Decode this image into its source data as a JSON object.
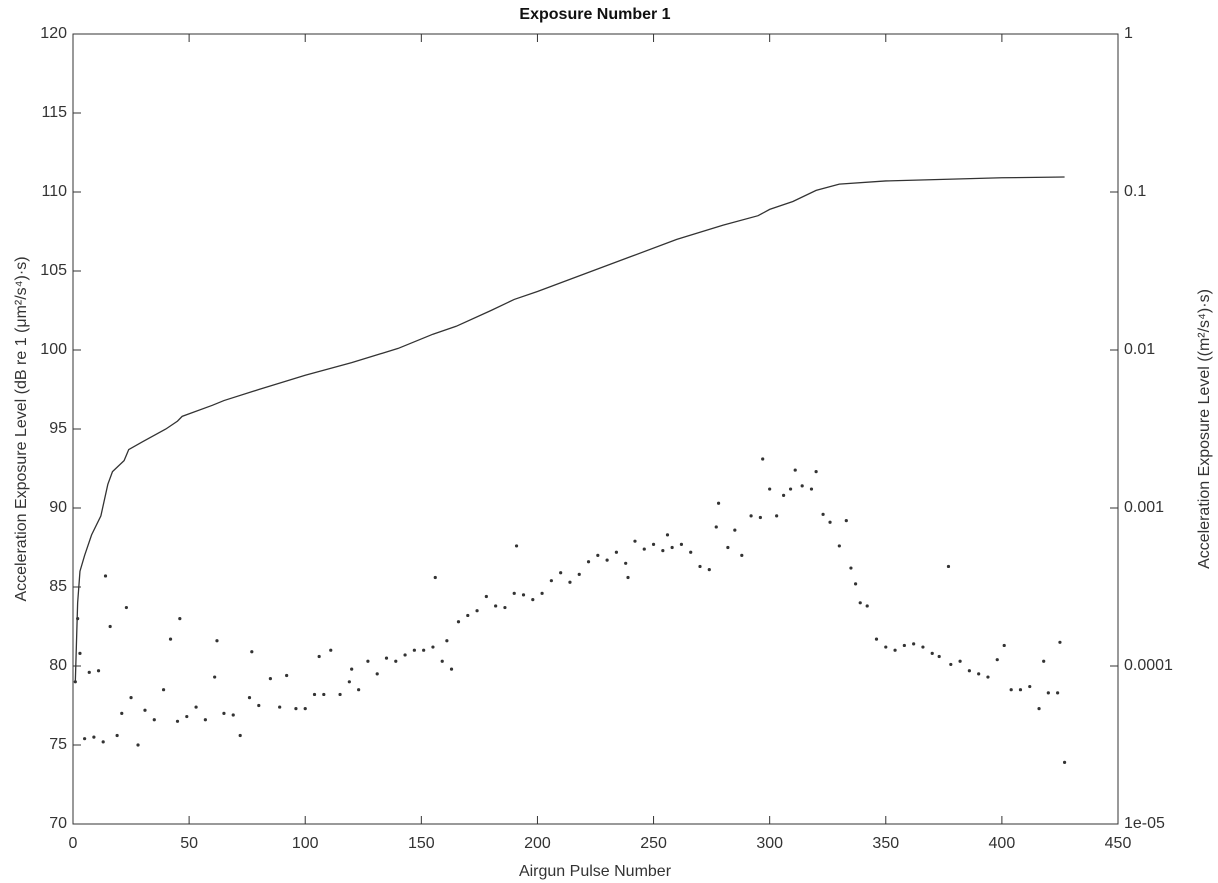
{
  "chart_data": {
    "type": "line",
    "title": "Exposure Number 1",
    "x_label": "Airgun Pulse Number",
    "y_label": "Acceleration Exposure Level (dB re 1 (μm²/s⁴)·s)",
    "y2_label": "Acceleration Exposure Level ((m²/s⁴)·s)",
    "xlim": [
      0,
      450
    ],
    "xticks": [
      0,
      50,
      100,
      150,
      200,
      250,
      300,
      350,
      400,
      450
    ],
    "ylim": [
      70,
      120
    ],
    "yticks": [
      70,
      75,
      80,
      85,
      90,
      95,
      100,
      105,
      110,
      115,
      120
    ],
    "y2lim": [
      1e-05,
      1
    ],
    "y2scale": "log",
    "y2ticks": [
      {
        "value": 1e-05,
        "label": "1e-05"
      },
      0.0001,
      0.001,
      0.01,
      0.1,
      1
    ],
    "grid": false,
    "series": [
      {
        "type": "scatter",
        "color": "#333333",
        "x": [
          1,
          2,
          3,
          5,
          7,
          9,
          11,
          13,
          14,
          16,
          19,
          21,
          23,
          25,
          28,
          31,
          35,
          39,
          42,
          45,
          46,
          49,
          53,
          57,
          61,
          62,
          65,
          69,
          72,
          76,
          77,
          80,
          85,
          89,
          92,
          96,
          100,
          104,
          106,
          108,
          111,
          115,
          119,
          120,
          123,
          127,
          131,
          135,
          139,
          143,
          147,
          151,
          155,
          156,
          159,
          161,
          163,
          166,
          170,
          174,
          178,
          182,
          186,
          190,
          191,
          194,
          198,
          202,
          206,
          210,
          214,
          218,
          222,
          226,
          230,
          234,
          238,
          239,
          242,
          246,
          250,
          254,
          256,
          258,
          262,
          266,
          270,
          274,
          277,
          278,
          282,
          285,
          288,
          292,
          296,
          297,
          300,
          303,
          306,
          309,
          311,
          314,
          318,
          320,
          323,
          326,
          330,
          333,
          335,
          337,
          339,
          342,
          346,
          350,
          354,
          358,
          362,
          366,
          370,
          373,
          377,
          378,
          382,
          386,
          390,
          394,
          398,
          401,
          404,
          408,
          412,
          416,
          418,
          420,
          424,
          425,
          427
        ],
        "values": [
          79,
          83,
          80.8,
          75.4,
          79.6,
          75.5,
          79.7,
          75.2,
          85.7,
          82.5,
          75.6,
          77,
          83.7,
          78,
          75,
          77.2,
          76.6,
          78.5,
          81.7,
          76.5,
          83,
          76.8,
          77.4,
          76.6,
          79.3,
          81.6,
          77,
          76.9,
          75.6,
          78,
          80.9,
          77.5,
          79.2,
          77.4,
          79.4,
          77.3,
          77.3,
          78.2,
          80.6,
          78.2,
          81,
          78.2,
          79,
          79.8,
          78.5,
          80.3,
          79.5,
          80.5,
          80.3,
          80.7,
          81,
          81,
          81.2,
          85.6,
          80.3,
          81.6,
          79.8,
          82.8,
          83.2,
          83.5,
          84.4,
          83.8,
          83.7,
          84.6,
          87.6,
          84.5,
          84.2,
          84.6,
          85.4,
          85.9,
          85.3,
          85.8,
          86.6,
          87,
          86.7,
          87.2,
          86.5,
          85.6,
          87.9,
          87.4,
          87.7,
          87.3,
          88.3,
          87.5,
          87.7,
          87.2,
          86.3,
          86.1,
          88.8,
          90.3,
          87.5,
          88.6,
          87,
          89.5,
          89.4,
          93.1,
          91.2,
          89.5,
          90.8,
          91.2,
          92.4,
          91.4,
          91.2,
          92.3,
          89.6,
          89.1,
          87.6,
          89.2,
          86.2,
          85.2,
          84,
          83.8,
          81.7,
          81.2,
          81,
          81.3,
          81.4,
          81.2,
          80.8,
          80.6,
          86.3,
          80.1,
          80.3,
          79.7,
          79.5,
          79.3,
          80.4,
          81.3,
          78.5,
          78.5,
          78.7,
          77.3,
          80.3,
          78.3,
          78.3,
          81.5,
          73.9
        ]
      },
      {
        "type": "line",
        "color": "#333333",
        "x": [
          1,
          2,
          3,
          5,
          8,
          12,
          15,
          17,
          22,
          24,
          30,
          40,
          45,
          47,
          60,
          65,
          80,
          100,
          120,
          140,
          155,
          165,
          180,
          190,
          200,
          220,
          240,
          260,
          280,
          295,
          300,
          310,
          320,
          330,
          350,
          400,
          427
        ],
        "values": [
          79,
          84,
          86,
          87,
          88.3,
          89.5,
          91.5,
          92.3,
          93,
          93.7,
          94.2,
          95,
          95.5,
          95.8,
          96.5,
          96.8,
          97.5,
          98.4,
          99.2,
          100.1,
          101,
          101.5,
          102.5,
          103.2,
          103.7,
          104.8,
          105.9,
          107,
          107.9,
          108.5,
          108.9,
          109.4,
          110.1,
          110.5,
          110.7,
          110.9,
          110.95
        ]
      }
    ]
  }
}
